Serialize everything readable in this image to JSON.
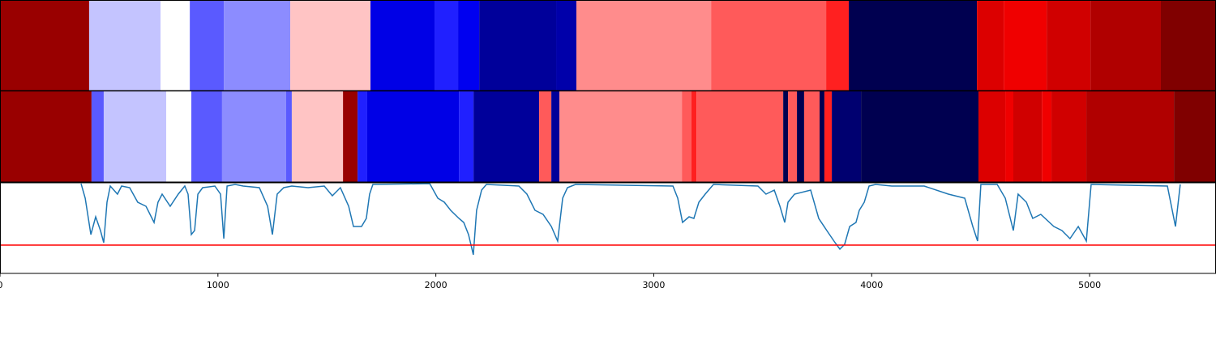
{
  "chart_data": [
    {
      "type": "segments",
      "xlim": [
        0,
        5580
      ],
      "segments": [
        {
          "start": 0,
          "end": 409,
          "color": "#990000"
        },
        {
          "start": 409,
          "end": 737,
          "color": "#c4c4ff"
        },
        {
          "start": 737,
          "end": 871,
          "color": "#ffffff"
        },
        {
          "start": 871,
          "end": 1027,
          "color": "#5a5aff"
        },
        {
          "start": 1027,
          "end": 1332,
          "color": "#8c8cff"
        },
        {
          "start": 1332,
          "end": 1700,
          "color": "#ffc4c4"
        },
        {
          "start": 1700,
          "end": 1994,
          "color": "#0000e6"
        },
        {
          "start": 1994,
          "end": 2102,
          "color": "#2020ff"
        },
        {
          "start": 2102,
          "end": 2199,
          "color": "#0000f0"
        },
        {
          "start": 2199,
          "end": 2552,
          "color": "#00009a"
        },
        {
          "start": 2552,
          "end": 2645,
          "color": "#0000aa"
        },
        {
          "start": 2645,
          "end": 3263,
          "color": "#ff8c8c"
        },
        {
          "start": 3263,
          "end": 3791,
          "color": "#ff5a5a"
        },
        {
          "start": 3791,
          "end": 3895,
          "color": "#ff2020"
        },
        {
          "start": 3895,
          "end": 4483,
          "color": "#000050"
        },
        {
          "start": 4483,
          "end": 4606,
          "color": "#dc0000"
        },
        {
          "start": 4606,
          "end": 4803,
          "color": "#f00000"
        },
        {
          "start": 4803,
          "end": 5004,
          "color": "#d00000"
        },
        {
          "start": 5004,
          "end": 5327,
          "color": "#b00000"
        },
        {
          "start": 5327,
          "end": 5580,
          "color": "#800000"
        }
      ]
    },
    {
      "type": "segments",
      "xlim": [
        0,
        5580
      ],
      "segments": [
        {
          "start": 0,
          "end": 420,
          "color": "#990000"
        },
        {
          "start": 420,
          "end": 476,
          "color": "#5a5aff"
        },
        {
          "start": 476,
          "end": 763,
          "color": "#c4c4ff"
        },
        {
          "start": 763,
          "end": 878,
          "color": "#ffffff"
        },
        {
          "start": 878,
          "end": 1019,
          "color": "#5a5aff"
        },
        {
          "start": 1019,
          "end": 1313,
          "color": "#8c8cff"
        },
        {
          "start": 1313,
          "end": 1339,
          "color": "#5a5aff"
        },
        {
          "start": 1339,
          "end": 1574,
          "color": "#ffc4c4"
        },
        {
          "start": 1574,
          "end": 1641,
          "color": "#990000"
        },
        {
          "start": 1641,
          "end": 1685,
          "color": "#2020ff"
        },
        {
          "start": 1685,
          "end": 2106,
          "color": "#0000e6"
        },
        {
          "start": 2106,
          "end": 2173,
          "color": "#2020ff"
        },
        {
          "start": 2173,
          "end": 2474,
          "color": "#00009a"
        },
        {
          "start": 2474,
          "end": 2530,
          "color": "#ff5a5a"
        },
        {
          "start": 2530,
          "end": 2567,
          "color": "#00009a"
        },
        {
          "start": 2567,
          "end": 3129,
          "color": "#ff8c8c"
        },
        {
          "start": 3129,
          "end": 3173,
          "color": "#ff5a5a"
        },
        {
          "start": 3173,
          "end": 3196,
          "color": "#ff2020"
        },
        {
          "start": 3196,
          "end": 3594,
          "color": "#ff5a5a"
        },
        {
          "start": 3594,
          "end": 3616,
          "color": "#000050"
        },
        {
          "start": 3616,
          "end": 3657,
          "color": "#ff5a5a"
        },
        {
          "start": 3657,
          "end": 3690,
          "color": "#000050"
        },
        {
          "start": 3690,
          "end": 3761,
          "color": "#ff5a5a"
        },
        {
          "start": 3761,
          "end": 3783,
          "color": "#000050"
        },
        {
          "start": 3783,
          "end": 3817,
          "color": "#ff2020"
        },
        {
          "start": 3817,
          "end": 3951,
          "color": "#000070"
        },
        {
          "start": 3951,
          "end": 4490,
          "color": "#000050"
        },
        {
          "start": 4490,
          "end": 4613,
          "color": "#dc0000"
        },
        {
          "start": 4613,
          "end": 4650,
          "color": "#f00000"
        },
        {
          "start": 4650,
          "end": 4781,
          "color": "#d00000"
        },
        {
          "start": 4781,
          "end": 4825,
          "color": "#f00000"
        },
        {
          "start": 4825,
          "end": 4985,
          "color": "#d00000"
        },
        {
          "start": 4985,
          "end": 5387,
          "color": "#b00000"
        },
        {
          "start": 5387,
          "end": 5580,
          "color": "#800000"
        }
      ]
    },
    {
      "type": "line",
      "xlim": [
        0,
        5580
      ],
      "ylim": [
        0,
        112
      ],
      "xticks": [
        0,
        1000,
        2000,
        3000,
        4000,
        5000
      ],
      "color": "#1f77b4",
      "threshold": 35,
      "threshold_color": "#ff0000",
      "x": [
        372,
        391,
        417,
        439,
        461,
        476,
        491,
        506,
        539,
        558,
        595,
        632,
        670,
        707,
        725,
        744,
        781,
        818,
        848,
        863,
        878,
        893,
        908,
        930,
        986,
        1012,
        1027,
        1042,
        1079,
        1116,
        1190,
        1228,
        1250,
        1272,
        1302,
        1339,
        1414,
        1488,
        1525,
        1562,
        1600,
        1622,
        1659,
        1681,
        1696,
        1711,
        1972,
        2009,
        2039,
        2068,
        2106,
        2128,
        2150,
        2172,
        2187,
        2210,
        2232,
        2381,
        2418,
        2455,
        2492,
        2530,
        2559,
        2582,
        2604,
        2641,
        3088,
        3110,
        3132,
        3162,
        3184,
        3207,
        3236,
        3274,
        3478,
        3515,
        3553,
        3579,
        3601,
        3616,
        3646,
        3720,
        3757,
        3794,
        3832,
        3854,
        3876,
        3899,
        3928,
        3943,
        3966,
        3988,
        4018,
        4092,
        4241,
        4352,
        4427,
        4464,
        4486,
        4501,
        4576,
        4613,
        4650,
        4672,
        4710,
        4739,
        4776,
        4836,
        4873,
        4910,
        4948,
        4985,
        5007,
        5357,
        5394,
        5416
      ],
      "values": [
        111,
        93,
        48,
        70,
        53,
        38,
        88,
        108,
        98,
        108,
        106,
        88,
        83,
        63,
        88,
        98,
        83,
        98,
        108,
        98,
        48,
        53,
        98,
        106,
        108,
        98,
        43,
        108,
        110,
        108,
        106,
        83,
        48,
        98,
        106,
        108,
        106,
        108,
        96,
        106,
        83,
        58,
        58,
        68,
        98,
        110,
        111,
        93,
        88,
        78,
        68,
        63,
        48,
        23,
        78,
        103,
        110,
        108,
        98,
        78,
        73,
        58,
        40,
        93,
        106,
        110,
        108,
        93,
        63,
        70,
        68,
        88,
        98,
        110,
        108,
        98,
        103,
        83,
        63,
        88,
        98,
        103,
        68,
        53,
        38,
        30,
        36,
        58,
        63,
        78,
        88,
        108,
        110,
        108,
        108,
        98,
        93,
        58,
        40,
        110,
        110,
        93,
        53,
        98,
        88,
        68,
        73,
        58,
        53,
        43,
        58,
        40,
        110,
        108,
        58,
        110
      ]
    }
  ]
}
